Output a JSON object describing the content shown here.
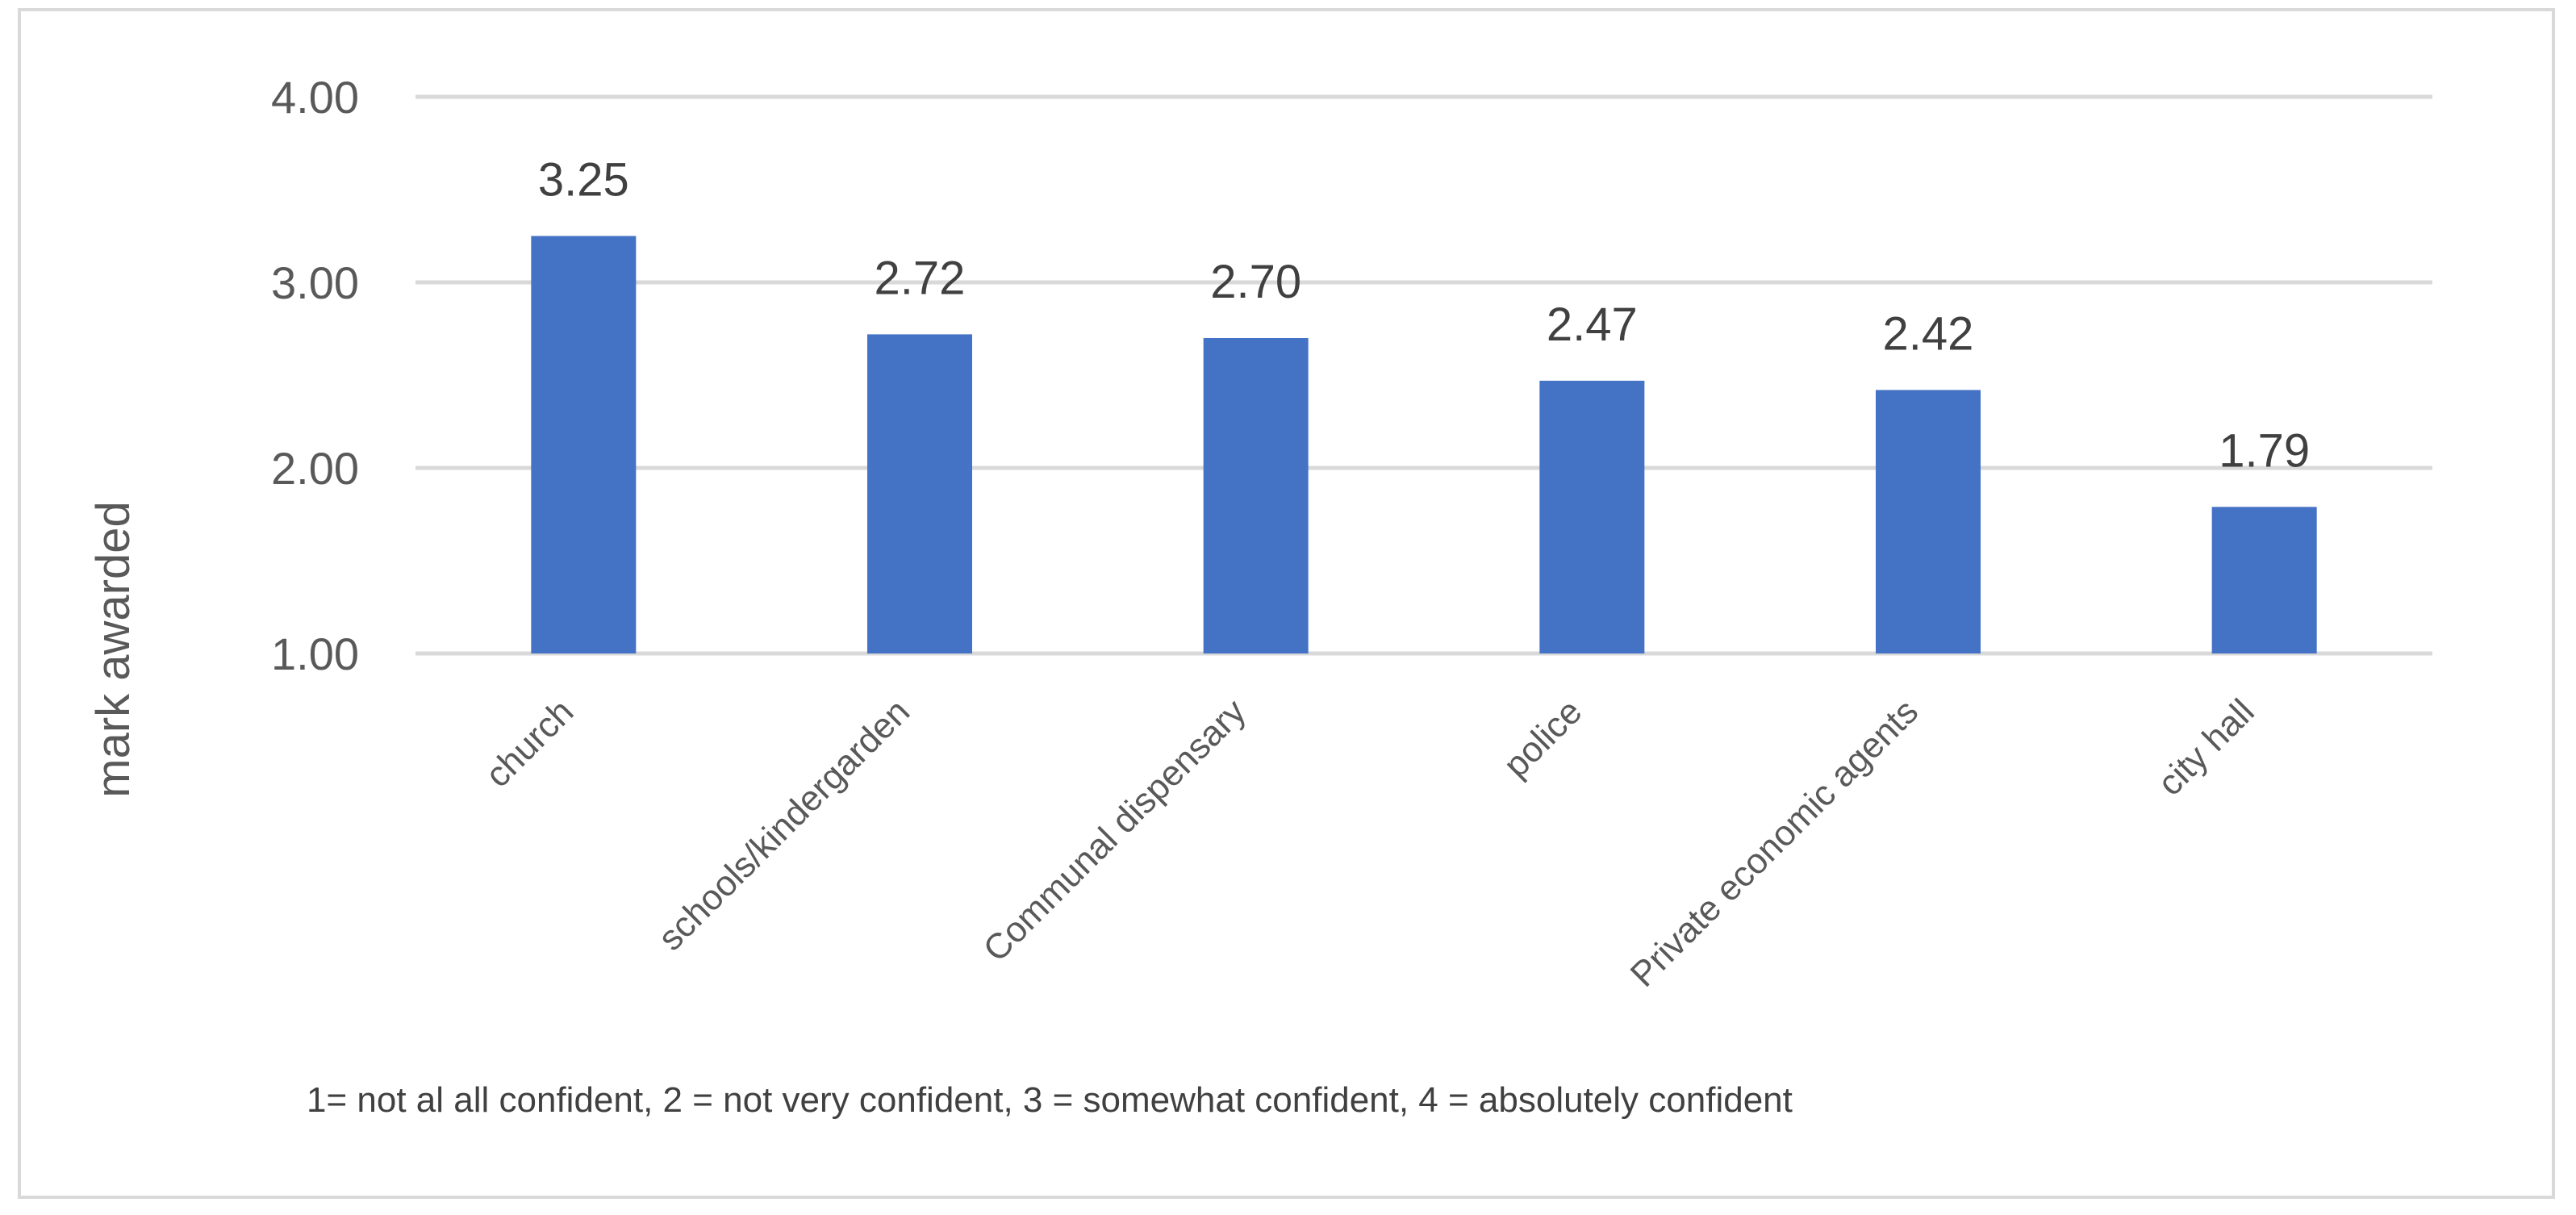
{
  "chart_data": {
    "type": "bar",
    "categories": [
      "church",
      "schools/kindergarden",
      "Communal dispensary",
      "police",
      "Private economic agents",
      "city hall"
    ],
    "values": [
      3.25,
      2.72,
      2.7,
      2.47,
      2.42,
      1.79
    ],
    "data_labels": [
      "3.25",
      "2.72",
      "2.70",
      "2.47",
      "2.42",
      "1.79"
    ],
    "ylabel": "mark awarded",
    "ylim": [
      1.0,
      4.0
    ],
    "yticks": [
      1.0,
      2.0,
      3.0,
      4.0
    ],
    "ytick_labels": [
      "1.00",
      "2.00",
      "3.00",
      "4.00"
    ],
    "grid": true,
    "legend": "none",
    "bar_color": "#4472c4",
    "note": "1= not al all confident, 2 = not very confident, 3 = somewhat confident, 4 = absolutely confident"
  }
}
